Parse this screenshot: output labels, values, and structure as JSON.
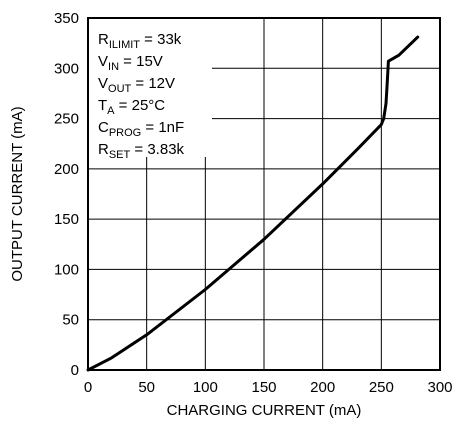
{
  "chart_data": {
    "type": "line",
    "title": "",
    "xlabel": "CHARGING CURRENT (mA)",
    "ylabel": "OUTPUT CURRENT (mA)",
    "xlim": [
      0,
      300
    ],
    "ylim": [
      0,
      350
    ],
    "xticks": [
      0,
      50,
      100,
      150,
      200,
      250,
      300
    ],
    "yticks": [
      0,
      50,
      100,
      150,
      200,
      250,
      300,
      350
    ],
    "grid": true,
    "legend": "none",
    "series": [
      {
        "x": [
          0,
          20,
          50,
          100,
          150,
          200,
          230,
          250,
          252,
          254,
          255,
          256,
          265,
          281
        ],
        "y": [
          0,
          12,
          35,
          80,
          130,
          185,
          220,
          244,
          250,
          265,
          285,
          307,
          313,
          331
        ]
      }
    ],
    "annotations": [
      {
        "main": "R",
        "sub": "ILIMIT",
        "rest": " = 33k"
      },
      {
        "main": "V",
        "sub": "IN",
        "rest": " = 15V"
      },
      {
        "main": "V",
        "sub": "OUT",
        "rest": " = 12V"
      },
      {
        "main": "T",
        "sub": "A",
        "rest": " = 25°C"
      },
      {
        "main": "C",
        "sub": "PROG",
        "rest": " = 1nF"
      },
      {
        "main": "R",
        "sub": "SET",
        "rest": " = 3.83k"
      }
    ],
    "colors": {
      "line": "#000000",
      "grid": "#000000",
      "background": "#ffffff"
    }
  }
}
